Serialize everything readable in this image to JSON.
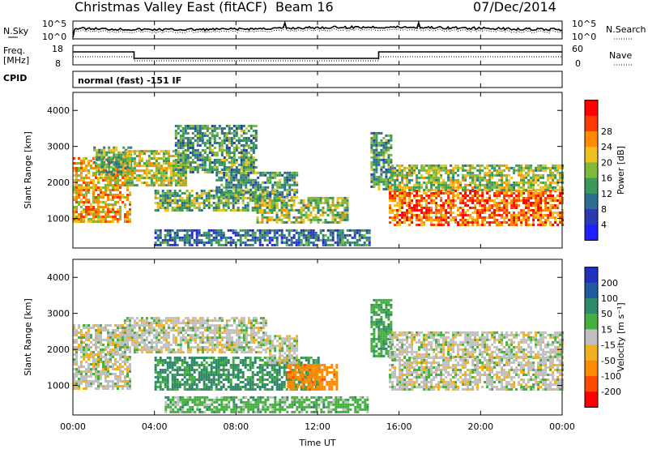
{
  "header": {
    "radar": "Christmas Valley East (fitACF)",
    "beam": "Beam 16",
    "date": "07/Dec/2014"
  },
  "noise_panel": {
    "left_label": "N.Sky",
    "right_label": "N.Search",
    "left_ticks": [
      "10^5",
      "10^0"
    ],
    "right_ticks": [
      "10^5",
      "10^0"
    ]
  },
  "freq_panel": {
    "left_label_1": "Freq.",
    "left_label_2": "[MHz]",
    "right_label": "Nave",
    "left_ticks": [
      "18",
      "8"
    ],
    "right_ticks": [
      "60",
      "0"
    ]
  },
  "cpid": {
    "label": "CPID",
    "program": "normal (fast) -151 IF"
  },
  "colors": {
    "power_scale": [
      "#1f1fff",
      "#2a3bb0",
      "#2e6e8f",
      "#3a9a5a",
      "#7fb93c",
      "#f0c020",
      "#ff8c00",
      "#ff3a00",
      "#ff0000"
    ],
    "velocity_scale": [
      "#2030c0",
      "#205aa0",
      "#2f8a6a",
      "#45b040",
      "#c0c0c0",
      "#f0b020",
      "#ff8a00",
      "#ff4a00",
      "#ff0000"
    ]
  },
  "chart_data": [
    {
      "type": "heatmap",
      "name": "power",
      "x_range": [
        "00:00",
        "00:00"
      ],
      "x_ticks": [
        "00:00",
        "04:00",
        "08:00",
        "12:00",
        "16:00",
        "20:00",
        "00:00"
      ],
      "xlabel": "Time UT",
      "ylabel": "Slant Range [km]",
      "ylim": [
        180,
        4500
      ],
      "y_ticks": [
        1000,
        2000,
        3000,
        4000
      ],
      "colorbar_label": "Power [dB]",
      "colorbar_ticks": [
        "4",
        "8",
        "12",
        "16",
        "20",
        "24",
        "28"
      ],
      "regions": [
        {
          "t0": 0.0,
          "t1": 2.8,
          "r0": 900,
          "r1": 2700,
          "value": 22
        },
        {
          "t0": 1.0,
          "t1": 2.8,
          "r0": 2200,
          "r1": 3000,
          "value": 14
        },
        {
          "t0": 2.5,
          "t1": 5.5,
          "r0": 1900,
          "r1": 2900,
          "value": 18
        },
        {
          "t0": 5.0,
          "t1": 9.0,
          "r0": 2300,
          "r1": 3600,
          "value": 12
        },
        {
          "t0": 4.0,
          "t1": 10.0,
          "r0": 1200,
          "r1": 1800,
          "value": 14
        },
        {
          "t0": 7.0,
          "t1": 11.0,
          "r0": 1600,
          "r1": 2300,
          "value": 12
        },
        {
          "t0": 9.0,
          "t1": 13.5,
          "r0": 900,
          "r1": 1600,
          "value": 16
        },
        {
          "t0": 4.0,
          "t1": 14.5,
          "r0": 250,
          "r1": 700,
          "value": 8
        },
        {
          "t0": 14.6,
          "t1": 15.6,
          "r0": 1800,
          "r1": 3400,
          "value": 12
        },
        {
          "t0": 15.5,
          "t1": 24.0,
          "r0": 800,
          "r1": 1800,
          "value": 26
        },
        {
          "t0": 15.5,
          "t1": 24.0,
          "r0": 1800,
          "r1": 2500,
          "value": 16
        }
      ]
    },
    {
      "type": "heatmap",
      "name": "velocity",
      "x_range": [
        "00:00",
        "00:00"
      ],
      "x_ticks": [
        "00:00",
        "04:00",
        "08:00",
        "12:00",
        "16:00",
        "20:00",
        "00:00"
      ],
      "xlabel": "Time UT",
      "ylabel": "Slant Range [km]",
      "ylim": [
        180,
        4500
      ],
      "y_ticks": [
        1000,
        2000,
        3000,
        4000
      ],
      "colorbar_label": "Velocity [m s⁻¹]",
      "colorbar_ticks": [
        "200",
        "100",
        "50",
        "15",
        "-15",
        "-50",
        "-100",
        "-200"
      ],
      "regions": [
        {
          "t0": 0.0,
          "t1": 2.8,
          "r0": 900,
          "r1": 2700,
          "value": 0
        },
        {
          "t0": 2.5,
          "t1": 9.5,
          "r0": 1900,
          "r1": 2900,
          "value": 0
        },
        {
          "t0": 4.0,
          "t1": 12.0,
          "r0": 900,
          "r1": 1800,
          "value": 60
        },
        {
          "t0": 9.5,
          "t1": 11.0,
          "r0": 1600,
          "r1": 2400,
          "value": 0
        },
        {
          "t0": 10.5,
          "t1": 13.0,
          "r0": 900,
          "r1": 1600,
          "value": -80
        },
        {
          "t0": 4.5,
          "t1": 14.5,
          "r0": 250,
          "r1": 700,
          "value": 30
        },
        {
          "t0": 14.6,
          "t1": 15.6,
          "r0": 1800,
          "r1": 3400,
          "value": 40
        },
        {
          "t0": 15.5,
          "t1": 24.0,
          "r0": 900,
          "r1": 1800,
          "value": 0
        },
        {
          "t0": 15.5,
          "t1": 24.0,
          "r0": 1800,
          "r1": 2500,
          "value": 0
        }
      ]
    }
  ]
}
